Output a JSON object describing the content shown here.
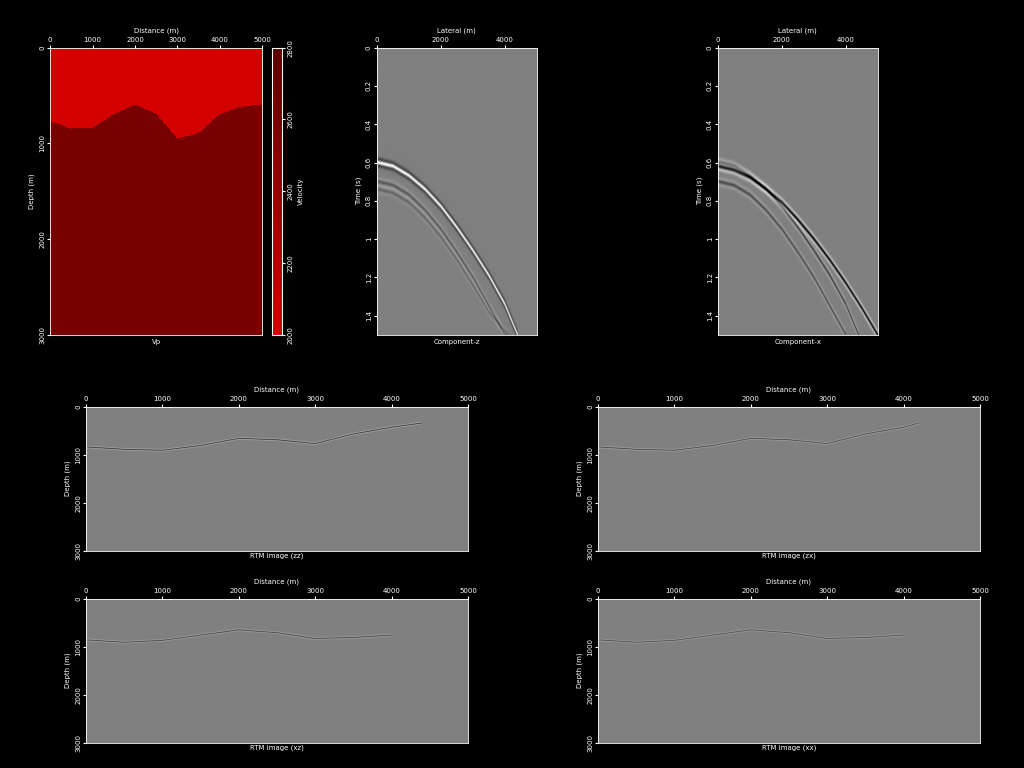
{
  "chart_data": [
    {
      "type": "velocity_model",
      "title": "Vp",
      "x_label": "Distance (m)",
      "y_label": "Depth (m)",
      "xlim": [
        0,
        5000
      ],
      "ylim": [
        0,
        3000
      ],
      "xticks": [
        0,
        1000,
        2000,
        3000,
        4000,
        5000
      ],
      "yticks": [
        0,
        1000,
        2000,
        3000
      ],
      "layers": {
        "interface_x": [
          0,
          500,
          1000,
          1500,
          2000,
          2500,
          3000,
          3500,
          4000,
          4500,
          5000
        ],
        "interface_depth": [
          770,
          850,
          840,
          700,
          600,
          690,
          950,
          900,
          700,
          620,
          600
        ],
        "velocities": [
          2000,
          2600
        ]
      },
      "colorbar": {
        "label": "Velocity",
        "range": [
          2000,
          2800
        ],
        "ticks": [
          2000,
          2200,
          2400,
          2600,
          2800
        ]
      }
    },
    {
      "type": "shot_gather",
      "title": "Component-z",
      "x_label": "Lateral (m)",
      "y_label": "Time (s)",
      "xlim": [
        0,
        5000
      ],
      "ylim": [
        0,
        1.5
      ],
      "xticks": [
        0,
        2000,
        4000
      ],
      "yticks": [
        0,
        0.2,
        0.4,
        0.6,
        0.8,
        1,
        1.2,
        1.4
      ],
      "events": [
        {
          "x": [
            0,
            500,
            1000,
            1500,
            2000,
            2500,
            3000,
            3500,
            4000,
            4400
          ],
          "t": [
            0.6,
            0.62,
            0.67,
            0.74,
            0.83,
            0.94,
            1.06,
            1.19,
            1.34,
            1.5
          ],
          "amplitude": 1
        },
        {
          "x": [
            0,
            500,
            1000,
            1500,
            2000,
            2500,
            3000,
            3500,
            4000
          ],
          "t": [
            0.7,
            0.72,
            0.77,
            0.85,
            0.95,
            1.07,
            1.2,
            1.35,
            1.5
          ],
          "amplitude": -0.3
        },
        {
          "x": [
            0,
            500,
            1000,
            1500,
            2000,
            2500,
            3000,
            3500,
            4100
          ],
          "t": [
            0.74,
            0.76,
            0.81,
            0.89,
            0.99,
            1.11,
            1.24,
            1.38,
            1.5
          ],
          "amplitude": -0.2
        }
      ]
    },
    {
      "type": "shot_gather",
      "title": "Component-x",
      "x_label": "Lateral (m)",
      "y_label": "Time (s)",
      "xlim": [
        0,
        5000
      ],
      "ylim": [
        0,
        1.5
      ],
      "xticks": [
        0,
        2000,
        4000
      ],
      "yticks": [
        0,
        0.2,
        0.4,
        0.6,
        0.8,
        1,
        1.2,
        1.4
      ],
      "events": [
        {
          "x": [
            0,
            500,
            1000,
            1500,
            2000,
            2500,
            3000,
            3500,
            4000,
            4400
          ],
          "t": [
            0.6,
            0.62,
            0.67,
            0.74,
            0.83,
            0.94,
            1.06,
            1.19,
            1.34,
            1.5
          ],
          "amplitude": -0.5
        },
        {
          "x": [
            0,
            500,
            1000,
            1500,
            2000,
            2500,
            3000,
            3500,
            4000
          ],
          "t": [
            0.7,
            0.72,
            0.77,
            0.85,
            0.95,
            1.07,
            1.2,
            1.35,
            1.5
          ],
          "amplitude": -0.4
        },
        {
          "x": [
            0,
            500,
            1000,
            1500,
            2000,
            2500,
            3000,
            3500,
            4000,
            4500,
            5000
          ],
          "t": [
            0.62,
            0.64,
            0.68,
            0.74,
            0.81,
            0.9,
            1.0,
            1.11,
            1.23,
            1.36,
            1.5
          ],
          "amplitude": -1
        }
      ]
    },
    {
      "type": "migration_image",
      "title": "RTM Image (zz)",
      "x_label": "Distance (m)",
      "y_label": "Depth (m)",
      "xlim": [
        0,
        5000
      ],
      "ylim": [
        0,
        3000
      ],
      "xticks": [
        0,
        1000,
        2000,
        3000,
        4000,
        5000
      ],
      "yticks": [
        0,
        1000,
        2000,
        3000
      ],
      "reflector": {
        "x": [
          0,
          500,
          1000,
          1500,
          2000,
          2500,
          3000,
          3500,
          4000,
          4400
        ],
        "depth": [
          830,
          880,
          900,
          800,
          650,
          680,
          760,
          560,
          420,
          330
        ],
        "amplitude": -1
      }
    },
    {
      "type": "migration_image",
      "title": "RTM Image (zx)",
      "x_label": "Distance (m)",
      "y_label": "Depth (m)",
      "xlim": [
        0,
        5000
      ],
      "ylim": [
        0,
        3000
      ],
      "xticks": [
        0,
        1000,
        2000,
        3000,
        4000,
        5000
      ],
      "yticks": [
        0,
        1000,
        2000,
        3000
      ],
      "reflector": {
        "x": [
          0,
          500,
          1000,
          1500,
          2000,
          2500,
          3000,
          3500,
          4000,
          4200
        ],
        "depth": [
          830,
          880,
          900,
          800,
          650,
          680,
          760,
          560,
          420,
          330
        ],
        "amplitude": -0.8
      }
    },
    {
      "type": "migration_image",
      "title": "RTM Image (xz)",
      "x_label": "Distance (m)",
      "y_label": "Depth (m)",
      "xlim": [
        0,
        5000
      ],
      "ylim": [
        0,
        3000
      ],
      "xticks": [
        0,
        1000,
        2000,
        3000,
        4000,
        5000
      ],
      "yticks": [
        0,
        1000,
        2000,
        3000
      ],
      "reflector": {
        "x": [
          0,
          500,
          1000,
          1500,
          2000,
          2500,
          3000,
          3500,
          4000
        ],
        "depth": [
          850,
          900,
          860,
          750,
          640,
          700,
          820,
          800,
          750
        ],
        "amplitude": -0.8
      }
    },
    {
      "type": "migration_image",
      "title": "RTM Image (xx)",
      "x_label": "Distance (m)",
      "y_label": "Depth (m)",
      "xlim": [
        0,
        5000
      ],
      "ylim": [
        0,
        3000
      ],
      "xticks": [
        0,
        1000,
        2000,
        3000,
        4000,
        5000
      ],
      "yticks": [
        0,
        1000,
        2000,
        3000
      ],
      "reflector": {
        "x": [
          0,
          500,
          1000,
          1500,
          2000,
          2500,
          3000,
          3500,
          4000
        ],
        "depth": [
          850,
          900,
          860,
          750,
          640,
          700,
          820,
          800,
          750
        ],
        "amplitude": -0.7
      }
    }
  ]
}
